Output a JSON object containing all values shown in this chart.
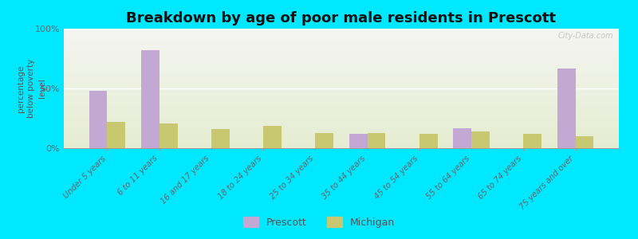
{
  "title": "Breakdown by age of poor male residents in Prescott",
  "ylabel": "percentage\nbelow poverty\nlevel",
  "categories": [
    "Under 5 years",
    "6 to 11 years",
    "16 and 17 years",
    "18 to 24 years",
    "25 to 34 years",
    "35 to 44 years",
    "45 to 54 years",
    "55 to 64 years",
    "65 to 74 years",
    "75 years and over"
  ],
  "prescott_values": [
    48,
    82,
    0,
    0,
    0,
    12,
    0,
    17,
    0,
    67
  ],
  "michigan_values": [
    22,
    21,
    16,
    19,
    13,
    13,
    12,
    14,
    12,
    10
  ],
  "prescott_color": "#c4a8d4",
  "michigan_color": "#c8c870",
  "bar_width": 0.35,
  "ylim": [
    0,
    100
  ],
  "yticks": [
    0,
    50,
    100
  ],
  "ytick_labels": [
    "0%",
    "50%",
    "100%"
  ],
  "outer_bg_color": "#00e8ff",
  "title_fontsize": 13,
  "legend_labels": [
    "Prescott",
    "Michigan"
  ],
  "watermark": "City-Data.com"
}
